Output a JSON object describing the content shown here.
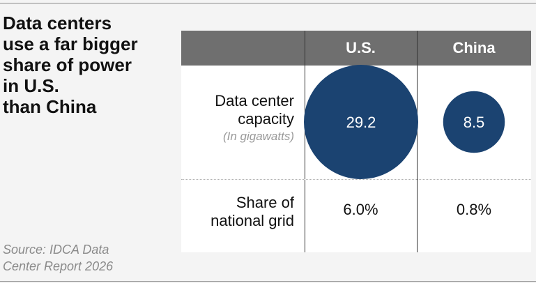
{
  "headline": {
    "lines": [
      "Data centers",
      "use a far bigger",
      "share of power",
      "in U.S.",
      "than China"
    ]
  },
  "source": {
    "lines": [
      "Source: IDCA Data",
      "Center Report 2026"
    ]
  },
  "colors": {
    "header_bg": "#6f6f6f",
    "bubble": "#1b4371",
    "source_text": "#8a8a8a"
  },
  "chart_data": {
    "type": "table",
    "columns": [
      "U.S.",
      "China"
    ],
    "rows": [
      {
        "label_lines": [
          "Data center",
          "capacity"
        ],
        "unit": "(In gigawatts)",
        "values": [
          29.2,
          8.5
        ],
        "display": [
          "29.2",
          "8.5"
        ],
        "encoding": "circle-area"
      },
      {
        "label_lines": [
          "Share of",
          "national grid"
        ],
        "values": [
          6.0,
          0.8
        ],
        "display": [
          "6.0%",
          "0.8%"
        ]
      }
    ]
  }
}
